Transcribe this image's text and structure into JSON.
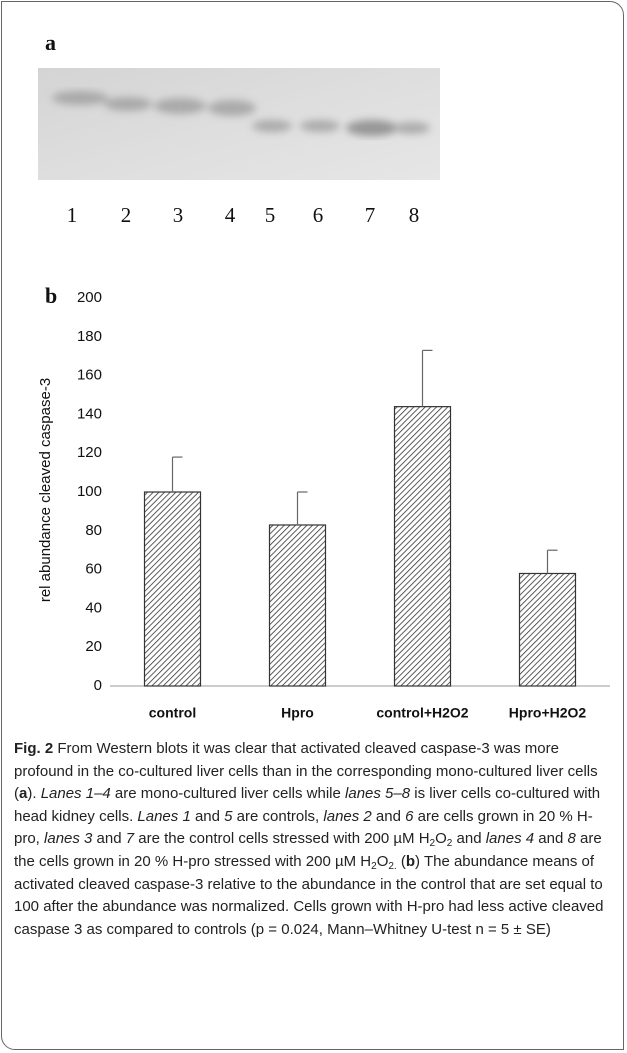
{
  "panel_a": {
    "label": "a",
    "lanes": [
      "1",
      "2",
      "3",
      "4",
      "5",
      "6",
      "7",
      "8"
    ]
  },
  "panel_b": {
    "label": "b"
  },
  "chart_data": {
    "type": "bar",
    "y_label": "rel abundance cleaved caspase-3",
    "categories": [
      "control",
      "Hpro",
      "control+H2O2",
      "Hpro+H2O2"
    ],
    "values": [
      100,
      83,
      144,
      58
    ],
    "errors": [
      18,
      17,
      29,
      12
    ],
    "color": "#333333",
    "ylim": [
      0,
      200
    ],
    "yticks": [
      0,
      20,
      40,
      60,
      80,
      100,
      120,
      140,
      160,
      180,
      200
    ],
    "grid": false
  },
  "caption": {
    "runs": [
      "Fig. 2",
      " From Western blots it was clear that activated cleaved caspase-3 was more profound in the co-cultured liver cells than in the corresponding mono-cultured liver cells (",
      "a",
      "). ",
      "Lanes 1–4",
      " are mono-cultured liver cells while ",
      "lanes 5–8",
      " is liver cells co-cultured with head kidney cells. ",
      "Lanes 1",
      " and ",
      "5",
      " are controls, ",
      "lanes 2",
      " and ",
      "6",
      " are cells grown in 20 % H-pro, ",
      "lanes 3",
      " and ",
      "7",
      " are the control cells stressed with 200 µM H",
      "2",
      "O",
      "2",
      " and ",
      "lanes 4",
      " and ",
      "8",
      " are the cells grown in 20 % H-pro stressed with 200 µM H",
      "2",
      "O",
      "2.",
      " (",
      "b",
      ") The abundance means of activated cleaved caspase-3 relative to the abundance in the control that are set equal to 100 after the abundance was normalized. Cells grown with H-pro had less active cleaved caspase 3 as compared to controls (p = 0.024, Mann–Whitney U-test n = 5 ± SE)"
    ]
  }
}
